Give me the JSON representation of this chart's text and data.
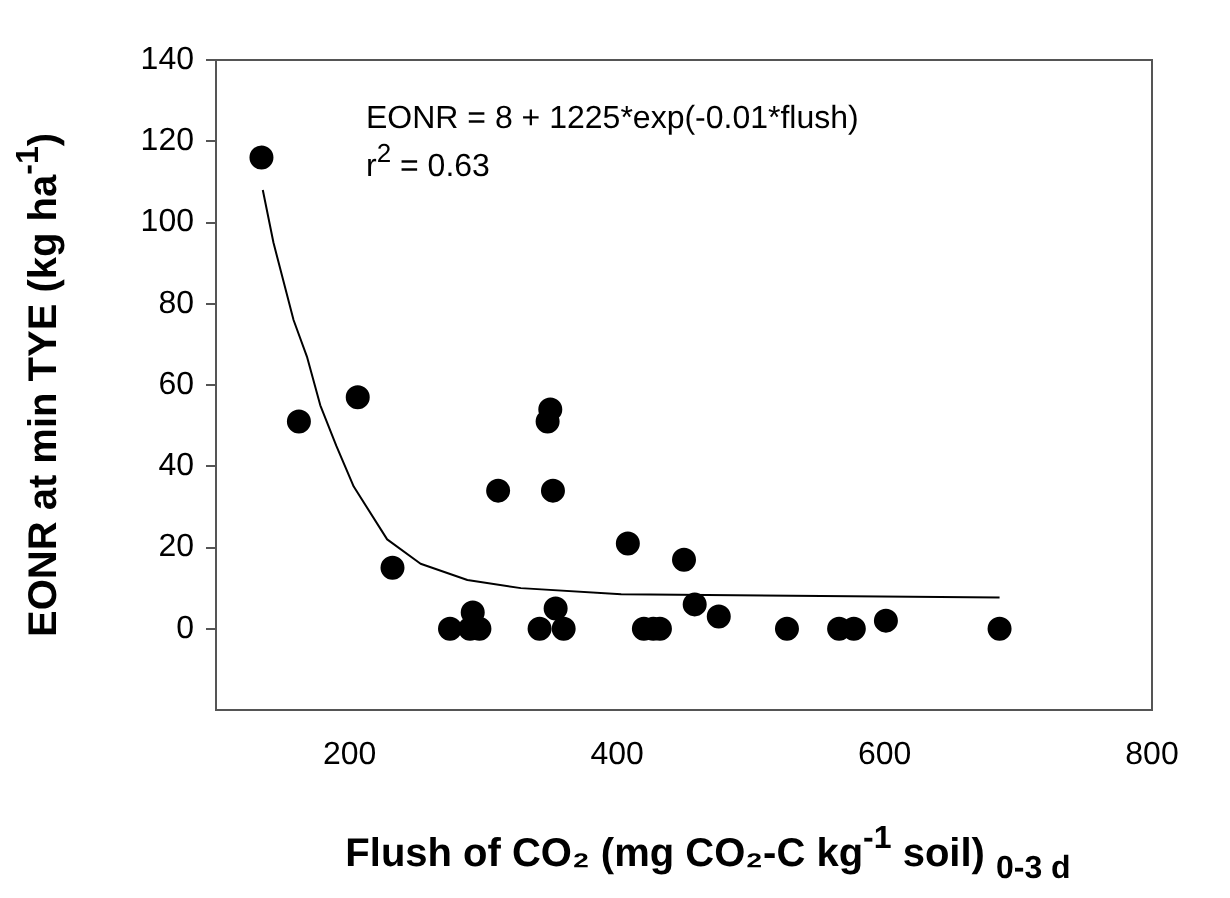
{
  "chart_data": {
    "type": "scatter",
    "xlabel": "Flush of CO₂ (mg CO₂-C kg$^{-1}$ soil) $_{0-3 d}$",
    "ylabel": "EONR at min TYE (kg ha$^{-1}$)",
    "annotations": [
      "EONR = 8 + 1225*exp(-0.01*flush)",
      "r$^{2}$ = 0.63"
    ],
    "xlim": [
      100,
      800
    ],
    "xticks": [
      200,
      400,
      600,
      800
    ],
    "ylim": [
      -20,
      140
    ],
    "yticks": [
      0,
      20,
      40,
      60,
      80,
      100,
      120,
      140
    ],
    "grid": false,
    "legend": false,
    "series": [
      {
        "type": "scatter",
        "color": "#000000",
        "marker": "circle",
        "x": [
          134,
          162,
          206,
          232,
          275,
          292,
          290,
          297,
          311,
          342,
          350,
          348,
          352,
          354,
          360,
          408,
          420,
          427,
          432,
          450,
          458,
          476,
          527,
          566,
          577,
          601,
          686
        ],
        "values": [
          116,
          51,
          57,
          15,
          0,
          4,
          0,
          0,
          34,
          0,
          54,
          51,
          34,
          5,
          0,
          21,
          0,
          0,
          0,
          17,
          6,
          3,
          0,
          0,
          0,
          2,
          0
        ]
      },
      {
        "type": "line",
        "color": "#000000",
        "marker": "none",
        "x": [
          135,
          143,
          158,
          168,
          178,
          190,
          203,
          228,
          253,
          288,
          328,
          403,
          686
        ],
        "values": [
          108,
          95,
          76,
          67,
          55,
          45,
          35,
          22,
          16,
          12,
          10,
          8.5,
          7.7
        ]
      }
    ]
  }
}
